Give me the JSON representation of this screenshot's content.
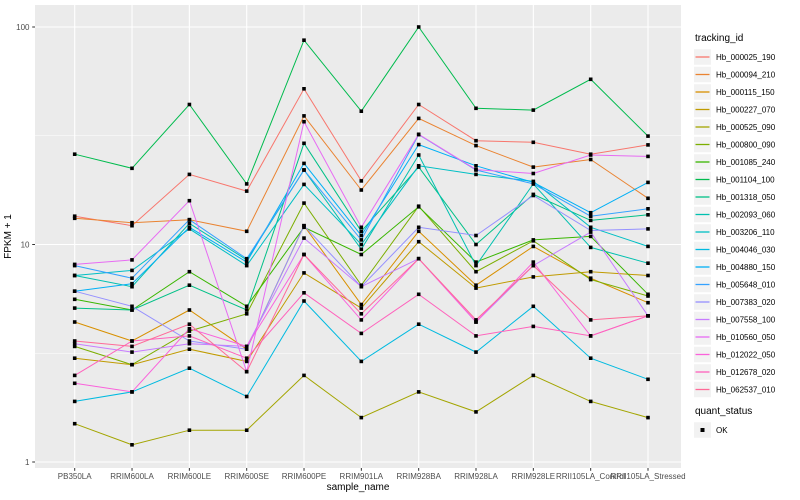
{
  "chart_data": {
    "type": "line",
    "title": "",
    "xlabel": "sample_name",
    "ylabel": "FPKM + 1",
    "y_scale": "log10",
    "ylim": [
      0.94,
      121
    ],
    "y_ticks": [
      {
        "label": "1",
        "value": 1
      },
      {
        "label": "10",
        "value": 10
      },
      {
        "label": "100",
        "value": 100
      }
    ],
    "y_minor_ticks": [
      3.162,
      31.62
    ],
    "grid": true,
    "legend_position": "right",
    "legend_title": "tracking_id",
    "point_color": "#000000",
    "panel_bg": "#ebebeb",
    "grid_color": "#ffffff",
    "legend_key_bg": "#f2f2f2",
    "categories": [
      "PB350LA",
      "RRIM600LA",
      "RRIM600LE",
      "RRIM600SE",
      "RRIM600PE",
      "RRIM901LA",
      "RRIM928BA",
      "RRIM928LA",
      "RRIM928LE",
      "RRII105LA_Control",
      "RRII105LA_Stressed"
    ],
    "series": [
      {
        "name": "Hb_000025_190",
        "color": "#F8766D",
        "values": [
          13.5,
          12.2,
          21.0,
          17.6,
          52.0,
          19.6,
          44.0,
          30.0,
          29.5,
          26.0,
          28.7
        ]
      },
      {
        "name": "Hb_000094_210",
        "color": "#EA8331",
        "values": [
          13.2,
          12.6,
          13.0,
          11.5,
          39.0,
          17.8,
          38.0,
          28.5,
          22.7,
          24.6,
          16.3
        ]
      },
      {
        "name": "Hb_000115_150",
        "color": "#D89000",
        "values": [
          4.4,
          3.6,
          5.0,
          3.3,
          12.2,
          5.3,
          11.5,
          6.5,
          9.8,
          7.0,
          5.4
        ]
      },
      {
        "name": "Hb_000227_070",
        "color": "#C09B00",
        "values": [
          3.0,
          2.8,
          3.3,
          2.9,
          7.4,
          5.1,
          10.3,
          6.3,
          7.1,
          7.5,
          7.2
        ]
      },
      {
        "name": "Hb_000525_090",
        "color": "#A3A500",
        "values": [
          1.5,
          1.2,
          1.4,
          1.4,
          2.5,
          1.6,
          2.1,
          1.7,
          2.5,
          1.9,
          1.6
        ]
      },
      {
        "name": "Hb_000800_090",
        "color": "#7CAE00",
        "values": [
          3.4,
          2.8,
          4.0,
          4.8,
          15.5,
          6.5,
          15.0,
          7.5,
          10.4,
          6.9,
          5.8
        ]
      },
      {
        "name": "Hb_001085_240",
        "color": "#39B600",
        "values": [
          5.6,
          5.0,
          7.5,
          5.2,
          12.0,
          9.0,
          14.9,
          8.3,
          10.5,
          10.9,
          5.9
        ]
      },
      {
        "name": "Hb_001104_100",
        "color": "#00BB4E",
        "values": [
          26.0,
          22.4,
          44.0,
          19.0,
          87.0,
          41.0,
          100.0,
          42.3,
          41.5,
          57.5,
          31.5
        ]
      },
      {
        "name": "Hb_001318_050",
        "color": "#00C087",
        "values": [
          5.1,
          5.0,
          6.5,
          5.0,
          29.2,
          11.5,
          22.7,
          10.0,
          17.0,
          12.9,
          13.7
        ]
      },
      {
        "name": "Hb_002093_060",
        "color": "#00C0AF",
        "values": [
          7.2,
          6.4,
          12.5,
          8.5,
          22.0,
          9.5,
          25.8,
          8.0,
          19.0,
          9.7,
          8.2
        ]
      },
      {
        "name": "Hb_003206_110",
        "color": "#00BFC4",
        "values": [
          7.2,
          7.6,
          11.8,
          8.0,
          18.9,
          10.0,
          23.0,
          21.0,
          19.5,
          12.0,
          9.8
        ]
      },
      {
        "name": "Hb_004046_030",
        "color": "#00BAE0",
        "values": [
          1.9,
          2.1,
          2.7,
          2.0,
          5.5,
          2.9,
          4.3,
          3.2,
          5.2,
          3.0,
          2.4
        ]
      },
      {
        "name": "Hb_004880_150",
        "color": "#00B0F6",
        "values": [
          6.1,
          6.6,
          12.0,
          8.3,
          23.6,
          11.0,
          28.8,
          23.0,
          19.3,
          14.0,
          19.3
        ]
      },
      {
        "name": "Hb_005648_010",
        "color": "#35A2FF",
        "values": [
          8.0,
          7.0,
          13.0,
          8.6,
          22.0,
          10.5,
          32.0,
          22.0,
          19.0,
          13.5,
          14.6
        ]
      },
      {
        "name": "Hb_007383_020",
        "color": "#9590FF",
        "values": [
          6.1,
          5.2,
          3.6,
          3.3,
          12.2,
          6.4,
          12.0,
          11.0,
          16.8,
          11.6,
          11.8
        ]
      },
      {
        "name": "Hb_007558_100",
        "color": "#C77CFF",
        "values": [
          3.5,
          3.2,
          3.5,
          3.4,
          10.7,
          6.4,
          8.6,
          4.4,
          8.0,
          11.4,
          4.7
        ]
      },
      {
        "name": "Hb_010560_050",
        "color": "#E76BF3",
        "values": [
          8.1,
          8.5,
          15.9,
          2.6,
          36.7,
          12.0,
          32.1,
          22.1,
          21.2,
          25.8,
          25.4
        ]
      },
      {
        "name": "Hb_012022_050",
        "color": "#FA62DB",
        "values": [
          2.3,
          2.1,
          4.1,
          3.4,
          9.0,
          4.5,
          8.6,
          4.4,
          8.3,
          3.8,
          4.7
        ]
      },
      {
        "name": "Hb_012678_020",
        "color": "#FF62BC",
        "values": [
          2.5,
          3.6,
          3.8,
          3.0,
          6.0,
          3.9,
          5.9,
          3.8,
          4.2,
          3.8,
          4.7
        ]
      },
      {
        "name": "Hb_062537_010",
        "color": "#FF6A98",
        "values": [
          3.6,
          3.4,
          4.3,
          2.6,
          9.0,
          4.8,
          8.6,
          4.5,
          8.0,
          4.5,
          4.7
        ]
      }
    ]
  },
  "legend2": {
    "title": "quant_status",
    "items": [
      {
        "label": "OK"
      }
    ]
  }
}
